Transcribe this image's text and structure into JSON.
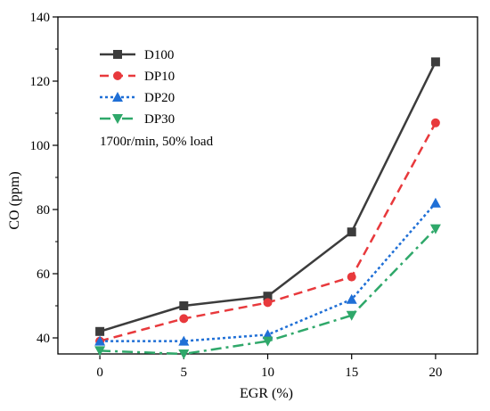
{
  "chart_data": {
    "type": "line",
    "title": "",
    "xlabel": "EGR (%)",
    "ylabel": "CO (ppm)",
    "x": [
      0,
      5,
      10,
      15,
      20
    ],
    "xticks": [
      0,
      5,
      10,
      15,
      20
    ],
    "yticks": [
      40,
      60,
      80,
      100,
      120,
      140
    ],
    "xlim": [
      -2.5,
      22.5
    ],
    "ylim": [
      35,
      140
    ],
    "grid": false,
    "legend_position": "top-left",
    "annotation": "1700r/min, 50% load",
    "series": [
      {
        "name": "D100",
        "values": [
          42,
          50,
          53,
          73,
          126
        ],
        "color": "#3c3c3c",
        "marker": "square",
        "dash": "solid"
      },
      {
        "name": "DP10",
        "values": [
          39,
          46,
          51,
          59,
          107
        ],
        "color": "#e8393c",
        "marker": "circle",
        "dash": "dash"
      },
      {
        "name": "DP20",
        "values": [
          39,
          39,
          41,
          52,
          82
        ],
        "color": "#1f6fd6",
        "marker": "triangle-up",
        "dash": "dot"
      },
      {
        "name": "DP30",
        "values": [
          36,
          35,
          39,
          47,
          74
        ],
        "color": "#2fa86a",
        "marker": "triangle-down",
        "dash": "dashdot"
      }
    ]
  }
}
